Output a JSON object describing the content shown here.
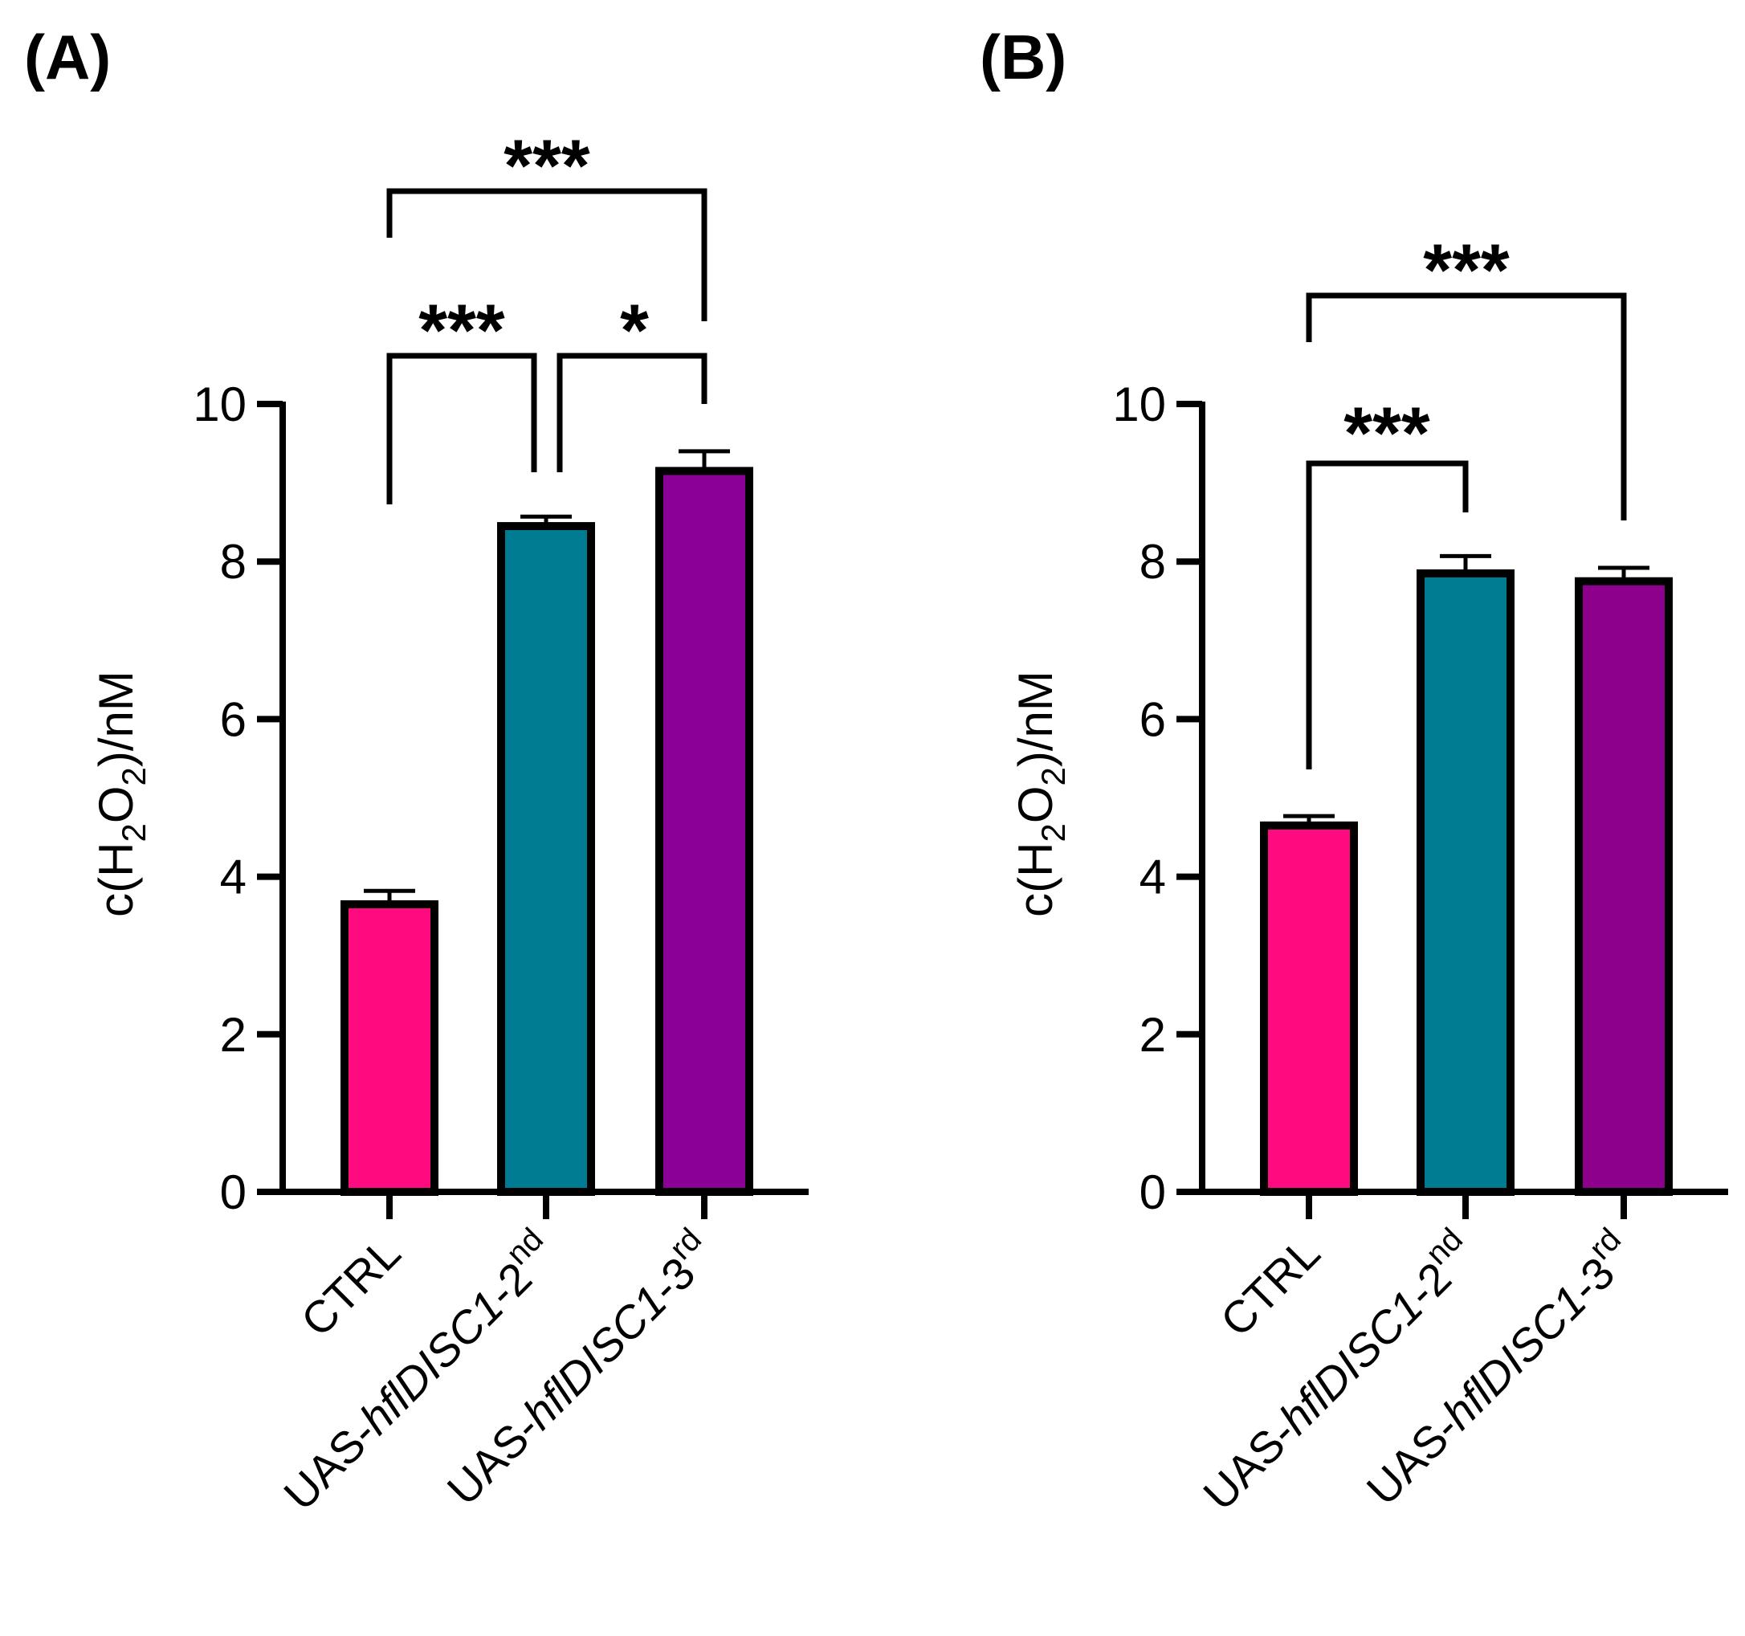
{
  "chart_data": [
    {
      "type": "bar",
      "panel_label": "(A)",
      "categories": [
        {
          "pre": "CTRL",
          "ital": "",
          "base": "",
          "sup": ""
        },
        {
          "pre": "UAS-",
          "ital": "hflDISC1",
          "base": "-2",
          "sup": "nd"
        },
        {
          "pre": "UAS-",
          "ital": "hflDISC1",
          "base": "-3",
          "sup": "rd"
        }
      ],
      "values": [
        3.65,
        8.45,
        9.15
      ],
      "errors": [
        0.17,
        0.12,
        0.25
      ],
      "colors": [
        "#FF0A7F",
        "#007C92",
        "#8B0096"
      ],
      "ylim": [
        0,
        10
      ],
      "yticks": [
        "0",
        "2",
        "4",
        "6",
        "8",
        "10"
      ],
      "ylabel": {
        "c": "c(H",
        "sub1": "2",
        "o": "O",
        "sub2": "2",
        "unit": ")/nM"
      },
      "significance": [
        {
          "from": 0,
          "to": 1,
          "label": "***"
        },
        {
          "from": 1,
          "to": 2,
          "label": "*"
        },
        {
          "from": 0,
          "to": 2,
          "label": "***"
        }
      ]
    },
    {
      "type": "bar",
      "panel_label": "(B)",
      "categories": [
        {
          "pre": "CTRL",
          "ital": "",
          "base": "",
          "sup": ""
        },
        {
          "pre": "UAS-",
          "ital": "hflDISC1",
          "base": "-2",
          "sup": "nd"
        },
        {
          "pre": "UAS-",
          "ital": "hflDISC1",
          "base": "-3",
          "sup": "rd"
        }
      ],
      "values": [
        4.65,
        7.85,
        7.75
      ],
      "errors": [
        0.12,
        0.22,
        0.17
      ],
      "colors": [
        "#FF0A7F",
        "#007C92",
        "#8C008C"
      ],
      "ylim": [
        0,
        10
      ],
      "yticks": [
        "0",
        "2",
        "4",
        "6",
        "8",
        "10"
      ],
      "ylabel": {
        "c": "c(H",
        "sub1": "2",
        "o": "O",
        "sub2": "2",
        "unit": ")/nM"
      },
      "significance": [
        {
          "from": 0,
          "to": 1,
          "label": "***"
        },
        {
          "from": 0,
          "to": 2,
          "label": "***"
        }
      ]
    }
  ]
}
